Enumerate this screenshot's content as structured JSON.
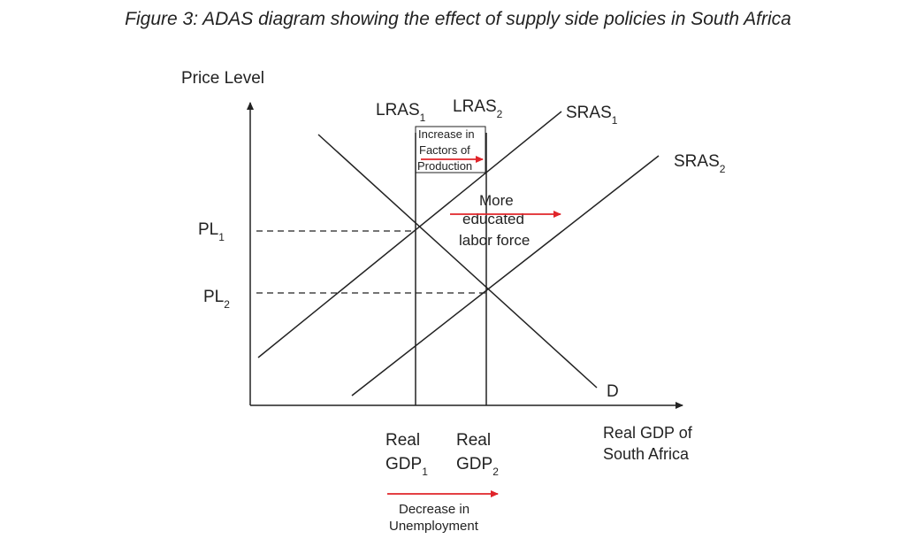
{
  "title": "Figure 3: ADAS diagram showing the effect of supply side policies in South Africa",
  "colors": {
    "line": "#222222",
    "arrow": "#e0242a",
    "background": "#ffffff"
  },
  "axes": {
    "y_label": "Price Level",
    "x_label_line1": "Real GDP of",
    "x_label_line2": "South Africa"
  },
  "curves": {
    "lras1": {
      "base": "LRAS",
      "sub": "1"
    },
    "lras2": {
      "base": "LRAS",
      "sub": "2"
    },
    "sras1": {
      "base": "SRAS",
      "sub": "1"
    },
    "sras2": {
      "base": "SRAS",
      "sub": "2"
    },
    "demand": "D"
  },
  "price_levels": {
    "pl1": {
      "base": "PL",
      "sub": "1"
    },
    "pl2": {
      "base": "PL",
      "sub": "2"
    }
  },
  "gdp_labels": {
    "gdp1": {
      "line1": "Real",
      "line2": "GDP",
      "sub": "1"
    },
    "gdp2": {
      "line1": "Real",
      "line2": "GDP",
      "sub": "2"
    }
  },
  "annotations": {
    "factors_box": [
      "Increase in",
      "Factors of",
      "Production"
    ],
    "educated": [
      "More",
      "educated",
      "labor force"
    ],
    "unemployment": [
      "Decrease in",
      "Unemployment"
    ]
  }
}
